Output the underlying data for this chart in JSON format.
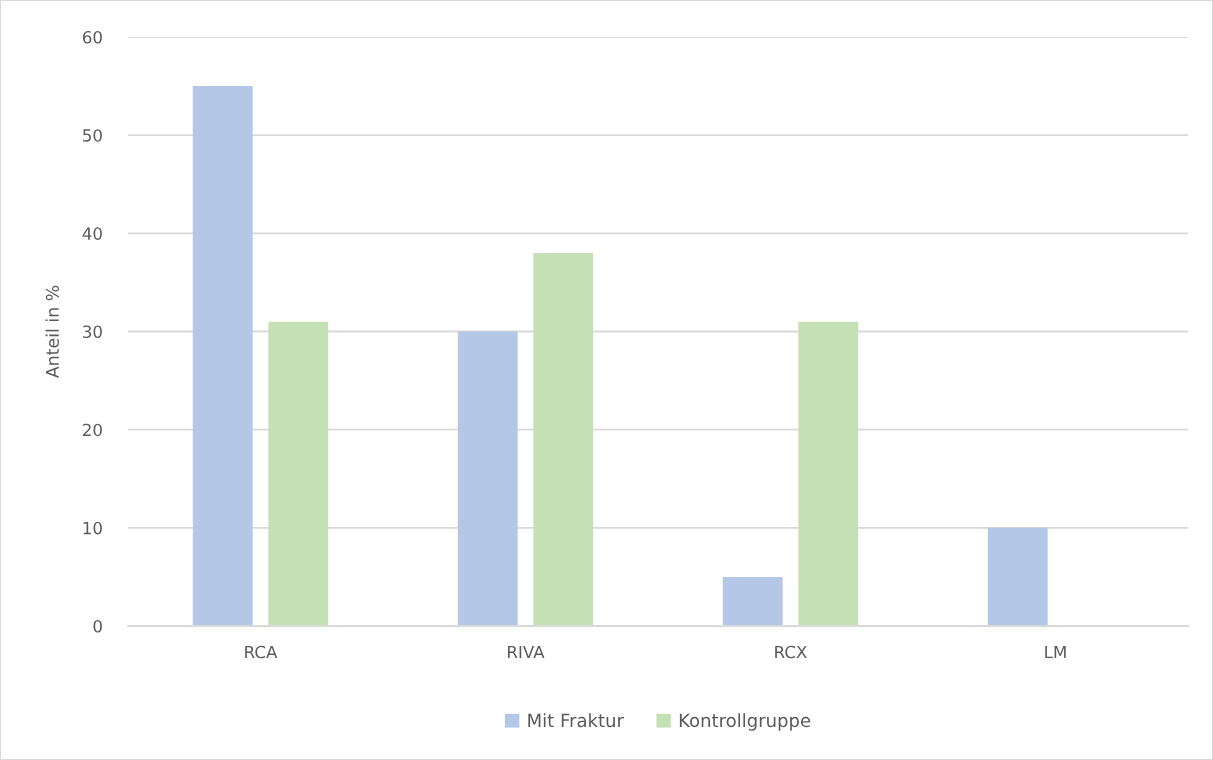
{
  "chart_data": {
    "type": "bar",
    "ylabel": "Anteil in %",
    "categories": [
      "RCA",
      "RIVA",
      "RCX",
      "LM"
    ],
    "series": [
      {
        "name": "Mit Fraktur",
        "color": "#b4c7e7",
        "values": [
          55,
          30,
          5,
          10
        ]
      },
      {
        "name": "Kontrollgruppe",
        "color": "#c5e0b4",
        "values": [
          31,
          38,
          31,
          0
        ]
      }
    ],
    "ylim": [
      0,
      60
    ],
    "yticks": [
      0,
      10,
      20,
      30,
      40,
      50,
      60
    ],
    "grid": "y",
    "legend": "bottom"
  }
}
